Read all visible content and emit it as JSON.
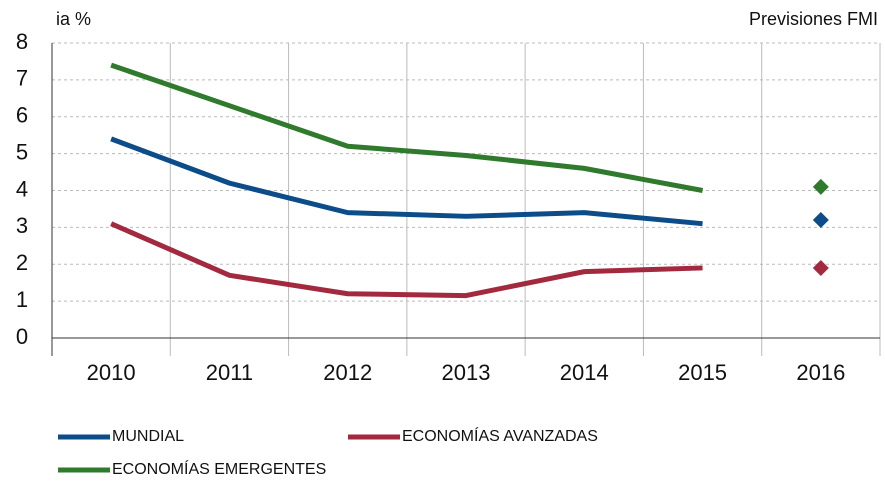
{
  "chart_data": {
    "type": "line",
    "y_label": "ia %",
    "annotation": "Previsiones FMI",
    "categories": [
      "2010",
      "2011",
      "2012",
      "2013",
      "2014",
      "2015",
      "2016"
    ],
    "series": [
      {
        "name": "MUNDIAL",
        "color": "#0b4c89",
        "values": [
          5.4,
          4.2,
          3.4,
          3.3,
          3.4,
          3.1,
          null
        ],
        "forecast": 3.2
      },
      {
        "name": "ECONOMÍAS AVANZADAS",
        "color": "#a3293f",
        "values": [
          3.1,
          1.7,
          1.2,
          1.15,
          1.8,
          1.9,
          null
        ],
        "forecast": 1.9
      },
      {
        "name": "ECONOMÍAS EMERGENTES",
        "color": "#2f7a2c",
        "values": [
          7.4,
          6.3,
          5.2,
          4.95,
          4.6,
          4.0,
          null
        ],
        "forecast": 4.1
      }
    ],
    "ylim": [
      0,
      8
    ],
    "yticks": [
      0,
      1,
      2,
      3,
      4,
      5,
      6,
      7,
      8
    ],
    "grid": true
  }
}
